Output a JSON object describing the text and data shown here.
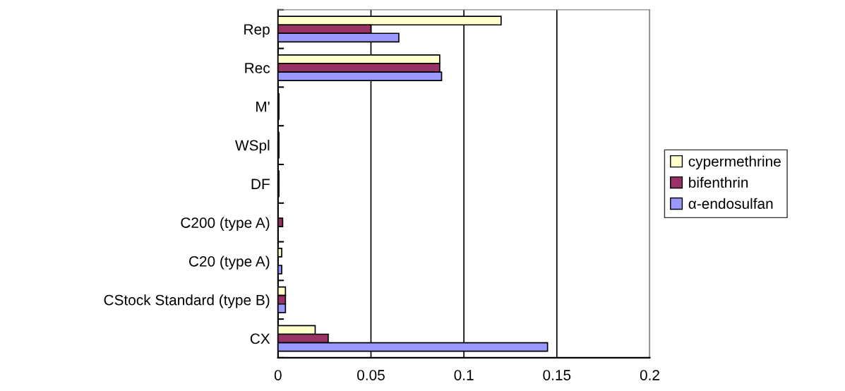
{
  "chart_data": {
    "type": "bar",
    "orientation": "horizontal",
    "categories": [
      "Rep",
      "Rec",
      "M'",
      "WSpl",
      "DF",
      "C200 (type A)",
      "C20 (type A)",
      "CStock Standard (type B)",
      "CX"
    ],
    "series": [
      {
        "name": "cypermethrine",
        "color": "#ffffcc",
        "values": [
          0.12,
          0.087,
          0.0005,
          0.0005,
          0.0005,
          null,
          0.002,
          0.004,
          0.02
        ]
      },
      {
        "name": "bifenthrin",
        "color": "#993366",
        "values": [
          0.05,
          0.087,
          0.0005,
          0.0005,
          0.0005,
          0.0025,
          null,
          0.004,
          0.027
        ]
      },
      {
        "name": "α-endosulfan",
        "color": "#9999ff",
        "values": [
          0.065,
          0.088,
          0.0005,
          0.0005,
          0.0005,
          null,
          0.002,
          0.004,
          0.145
        ]
      }
    ],
    "xlim": [
      0,
      0.2
    ],
    "xticks": [
      0,
      0.05,
      0.1,
      0.15,
      0.2
    ],
    "grid": "x",
    "legend": "right"
  }
}
